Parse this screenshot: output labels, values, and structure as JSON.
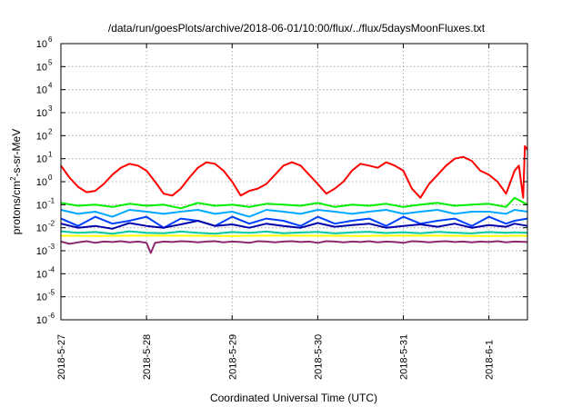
{
  "chart_data": {
    "type": "line",
    "title": "/data/run/goesPlots/archive/2018-06-01/10:00/flux/../flux/5daysMoonFluxes.txt",
    "xlabel": "Coordinated Universal Time (UTC)",
    "ylabel_parts": {
      "pre": "protons/cm",
      "sup": "2",
      "post": "-s-sr-MeV"
    },
    "y_scale": "log",
    "ylim": [
      1e-06,
      1000000.0
    ],
    "xlim": [
      0,
      5.45
    ],
    "x_origin_date": "2018-5-27",
    "x_ticks": [
      {
        "x": 0,
        "label": "2018-5-27"
      },
      {
        "x": 1,
        "label": "2018-5-28"
      },
      {
        "x": 2,
        "label": "2018-5-29"
      },
      {
        "x": 3,
        "label": "2018-5-30"
      },
      {
        "x": 4,
        "label": "2018-5-31"
      },
      {
        "x": 5,
        "label": "2018-6-1"
      }
    ],
    "y_ticks": [
      {
        "exp": -6,
        "base": "10",
        "sup": "-6"
      },
      {
        "exp": -5,
        "base": "10",
        "sup": "-5"
      },
      {
        "exp": -4,
        "base": "10",
        "sup": "-4"
      },
      {
        "exp": -3,
        "base": "10",
        "sup": "-3"
      },
      {
        "exp": -2,
        "base": "10",
        "sup": "-2"
      },
      {
        "exp": -1,
        "base": "10",
        "sup": "-1"
      },
      {
        "exp": 0,
        "base": "10",
        "sup": "0"
      },
      {
        "exp": 1,
        "base": "10",
        "sup": "1"
      },
      {
        "exp": 2,
        "base": "10",
        "sup": "2"
      },
      {
        "exp": 3,
        "base": "10",
        "sup": "3"
      },
      {
        "exp": 4,
        "base": "10",
        "sup": "4"
      },
      {
        "exp": 5,
        "base": "10",
        "sup": "5"
      },
      {
        "exp": 6,
        "base": "10",
        "sup": "6"
      }
    ],
    "grid": true,
    "series": [
      {
        "color": "#ff0000",
        "x": [
          0,
          0.1,
          0.2,
          0.3,
          0.4,
          0.5,
          0.6,
          0.7,
          0.8,
          0.9,
          1.0,
          1.1,
          1.2,
          1.3,
          1.4,
          1.5,
          1.6,
          1.7,
          1.8,
          1.9,
          2.0,
          2.1,
          2.2,
          2.3,
          2.4,
          2.5,
          2.6,
          2.7,
          2.8,
          2.9,
          3.0,
          3.1,
          3.2,
          3.3,
          3.4,
          3.5,
          3.6,
          3.7,
          3.8,
          3.9,
          4.0,
          4.1,
          4.2,
          4.3,
          4.4,
          4.5,
          4.6,
          4.7,
          4.8,
          4.9,
          5.0,
          5.1,
          5.2,
          5.3,
          5.35,
          5.4,
          5.42,
          5.45
        ],
        "y": [
          5,
          1.5,
          0.6,
          0.35,
          0.4,
          0.8,
          2,
          4,
          6,
          5,
          3,
          1,
          0.3,
          0.25,
          0.5,
          1.5,
          4,
          7,
          6,
          3,
          1,
          0.25,
          0.4,
          0.5,
          0.8,
          2,
          5,
          7,
          5,
          2,
          0.8,
          0.3,
          0.5,
          1,
          3,
          6,
          5,
          4,
          7,
          5,
          3,
          0.5,
          0.2,
          0.8,
          2,
          5,
          10,
          12,
          8,
          3,
          2,
          1,
          0.3,
          3,
          5,
          0.2,
          35,
          25
        ]
      },
      {
        "color": "#00ee00",
        "x": [
          0,
          0.2,
          0.4,
          0.6,
          0.8,
          1.0,
          1.2,
          1.4,
          1.6,
          1.8,
          2.0,
          2.2,
          2.4,
          2.6,
          2.8,
          3.0,
          3.2,
          3.4,
          3.6,
          3.8,
          4.0,
          4.2,
          4.4,
          4.6,
          4.8,
          5.0,
          5.2,
          5.3,
          5.45
        ],
        "y": [
          0.12,
          0.09,
          0.1,
          0.08,
          0.11,
          0.09,
          0.1,
          0.07,
          0.12,
          0.09,
          0.1,
          0.08,
          0.11,
          0.1,
          0.09,
          0.12,
          0.08,
          0.1,
          0.09,
          0.11,
          0.08,
          0.1,
          0.12,
          0.09,
          0.1,
          0.11,
          0.08,
          0.2,
          0.1
        ]
      },
      {
        "color": "#00a8ff",
        "x": [
          0,
          0.2,
          0.4,
          0.6,
          0.8,
          1.0,
          1.2,
          1.4,
          1.6,
          1.8,
          2.0,
          2.2,
          2.4,
          2.6,
          2.8,
          3.0,
          3.2,
          3.4,
          3.6,
          3.8,
          4.0,
          4.2,
          4.4,
          4.6,
          4.8,
          5.0,
          5.2,
          5.3,
          5.45
        ],
        "y": [
          0.06,
          0.04,
          0.05,
          0.03,
          0.06,
          0.05,
          0.04,
          0.05,
          0.06,
          0.04,
          0.05,
          0.03,
          0.06,
          0.05,
          0.04,
          0.06,
          0.05,
          0.04,
          0.05,
          0.06,
          0.04,
          0.05,
          0.06,
          0.04,
          0.05,
          0.05,
          0.04,
          0.06,
          0.05
        ]
      },
      {
        "color": "#0040ff",
        "x": [
          0,
          0.2,
          0.4,
          0.6,
          0.8,
          1.0,
          1.2,
          1.4,
          1.6,
          1.8,
          2.0,
          2.2,
          2.4,
          2.6,
          2.8,
          3.0,
          3.2,
          3.4,
          3.6,
          3.8,
          4.0,
          4.2,
          4.4,
          4.6,
          4.8,
          5.0,
          5.2,
          5.3,
          5.45
        ],
        "y": [
          0.025,
          0.012,
          0.03,
          0.015,
          0.02,
          0.03,
          0.01,
          0.025,
          0.02,
          0.012,
          0.03,
          0.015,
          0.025,
          0.02,
          0.012,
          0.03,
          0.015,
          0.02,
          0.025,
          0.012,
          0.03,
          0.015,
          0.02,
          0.025,
          0.012,
          0.03,
          0.015,
          0.02,
          0.025
        ]
      },
      {
        "color": "#0000aa",
        "x": [
          0,
          0.2,
          0.4,
          0.6,
          0.8,
          1.0,
          1.2,
          1.4,
          1.6,
          1.8,
          2.0,
          2.2,
          2.4,
          2.6,
          2.8,
          3.0,
          3.2,
          3.4,
          3.6,
          3.8,
          4.0,
          4.2,
          4.4,
          4.6,
          4.8,
          5.0,
          5.2,
          5.3,
          5.45
        ],
        "y": [
          0.015,
          0.01,
          0.012,
          0.009,
          0.016,
          0.012,
          0.01,
          0.014,
          0.02,
          0.012,
          0.014,
          0.01,
          0.015,
          0.012,
          0.01,
          0.016,
          0.011,
          0.013,
          0.015,
          0.01,
          0.012,
          0.014,
          0.011,
          0.015,
          0.01,
          0.013,
          0.011,
          0.015,
          0.012
        ]
      },
      {
        "color": "#00c8a0",
        "x": [
          0,
          0.2,
          0.4,
          0.6,
          0.8,
          1.0,
          1.2,
          1.4,
          1.6,
          1.8,
          2.0,
          2.2,
          2.4,
          2.6,
          2.8,
          3.0,
          3.2,
          3.4,
          3.6,
          3.8,
          4.0,
          4.2,
          4.4,
          4.6,
          4.8,
          5.0,
          5.2,
          5.3,
          5.45
        ],
        "y": [
          0.007,
          0.006,
          0.0065,
          0.0055,
          0.007,
          0.006,
          0.0058,
          0.0068,
          0.006,
          0.0055,
          0.0065,
          0.006,
          0.0068,
          0.0058,
          0.0062,
          0.0066,
          0.0057,
          0.0063,
          0.0067,
          0.0059,
          0.0064,
          0.0058,
          0.0066,
          0.0061,
          0.0057,
          0.0065,
          0.006,
          0.0063,
          0.006
        ]
      },
      {
        "color": "#ffff00",
        "x": [
          0,
          0.5,
          1.0,
          1.5,
          2.0,
          2.5,
          3.0,
          3.5,
          4.0,
          4.5,
          5.0,
          5.45
        ],
        "y": [
          0.0045,
          0.0044,
          0.0046,
          0.0045,
          0.0044,
          0.0046,
          0.0045,
          0.0044,
          0.0046,
          0.0045,
          0.0044,
          0.0045
        ]
      },
      {
        "color": "#8b2a6e",
        "x": [
          0,
          0.1,
          0.2,
          0.3,
          0.4,
          0.5,
          0.6,
          0.7,
          0.8,
          0.9,
          1.0,
          1.05,
          1.1,
          1.2,
          1.3,
          1.4,
          1.5,
          1.6,
          1.7,
          1.8,
          1.9,
          2.0,
          2.1,
          2.2,
          2.3,
          2.4,
          2.5,
          2.6,
          2.7,
          2.8,
          2.9,
          3.0,
          3.1,
          3.2,
          3.3,
          3.4,
          3.5,
          3.6,
          3.7,
          3.8,
          3.9,
          4.0,
          4.1,
          4.2,
          4.3,
          4.4,
          4.5,
          4.6,
          4.7,
          4.8,
          4.9,
          5.0,
          5.1,
          5.2,
          5.3,
          5.45
        ],
        "y": [
          0.0025,
          0.002,
          0.0023,
          0.0026,
          0.0022,
          0.0025,
          0.0024,
          0.0026,
          0.0023,
          0.0025,
          0.0022,
          0.0008,
          0.0022,
          0.0025,
          0.0024,
          0.0026,
          0.0025,
          0.0023,
          0.0025,
          0.0026,
          0.0023,
          0.0025,
          0.0024,
          0.0022,
          0.0026,
          0.0025,
          0.0023,
          0.0025,
          0.0026,
          0.0024,
          0.0025,
          0.0022,
          0.0026,
          0.0025,
          0.0023,
          0.0025,
          0.0024,
          0.0026,
          0.0023,
          0.0025,
          0.0024,
          0.0022,
          0.0026,
          0.0025,
          0.0023,
          0.0025,
          0.0026,
          0.0024,
          0.0025,
          0.0023,
          0.0025,
          0.0024,
          0.0026,
          0.0023,
          0.0025,
          0.0024
        ]
      }
    ]
  }
}
